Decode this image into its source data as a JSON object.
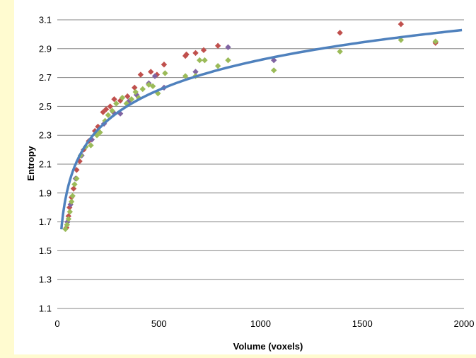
{
  "chart_data": {
    "type": "scatter",
    "title": "",
    "xlabel": "Volume (voxels)",
    "ylabel": "Entropy",
    "xlim": [
      0,
      2000
    ],
    "ylim": [
      1.1,
      3.1
    ],
    "x_ticks": [
      0,
      500,
      1000,
      1500,
      2000
    ],
    "y_ticks": [
      1.1,
      1.3,
      1.5,
      1.7,
      1.9,
      2.1,
      2.3,
      2.5,
      2.7,
      2.9,
      3.1
    ],
    "y_tick_labels": [
      "1.1",
      "1.3",
      "1.5",
      "1.7",
      "1.9",
      "2.1",
      "2.3",
      "2.5",
      "2.7",
      "2.9",
      "3.1"
    ],
    "grid": "horizontal",
    "legend": "none",
    "series": [
      {
        "color": "#c0504d",
        "marker": "diamond",
        "points": [
          [
            45,
            1.66
          ],
          [
            55,
            1.74
          ],
          [
            60,
            1.8
          ],
          [
            70,
            1.87
          ],
          [
            80,
            1.93
          ],
          [
            95,
            2.06
          ],
          [
            110,
            2.12
          ],
          [
            130,
            2.2
          ],
          [
            155,
            2.26
          ],
          [
            185,
            2.33
          ],
          [
            200,
            2.36
          ],
          [
            225,
            2.46
          ],
          [
            240,
            2.48
          ],
          [
            260,
            2.5
          ],
          [
            280,
            2.55
          ],
          [
            310,
            2.54
          ],
          [
            345,
            2.57
          ],
          [
            380,
            2.63
          ],
          [
            410,
            2.72
          ],
          [
            460,
            2.74
          ],
          [
            490,
            2.72
          ],
          [
            525,
            2.79
          ],
          [
            630,
            2.85
          ],
          [
            635,
            2.86
          ],
          [
            680,
            2.87
          ],
          [
            720,
            2.89
          ],
          [
            790,
            2.92
          ],
          [
            1390,
            3.01
          ],
          [
            1690,
            3.07
          ],
          [
            1860,
            2.94
          ]
        ]
      },
      {
        "color": "#8064a2",
        "marker": "diamond",
        "points": [
          [
            50,
            1.7
          ],
          [
            65,
            1.82
          ],
          [
            90,
            2.0
          ],
          [
            120,
            2.16
          ],
          [
            170,
            2.27
          ],
          [
            230,
            2.38
          ],
          [
            275,
            2.46
          ],
          [
            310,
            2.45
          ],
          [
            355,
            2.54
          ],
          [
            390,
            2.58
          ],
          [
            450,
            2.66
          ],
          [
            480,
            2.71
          ],
          [
            525,
            2.63
          ],
          [
            680,
            2.74
          ],
          [
            840,
            2.91
          ],
          [
            1065,
            2.82
          ]
        ]
      },
      {
        "color": "#9bbb59",
        "marker": "diamond",
        "points": [
          [
            40,
            1.65
          ],
          [
            48,
            1.68
          ],
          [
            55,
            1.72
          ],
          [
            62,
            1.77
          ],
          [
            70,
            1.84
          ],
          [
            75,
            1.88
          ],
          [
            85,
            1.96
          ],
          [
            95,
            2.0
          ],
          [
            115,
            2.16
          ],
          [
            140,
            2.22
          ],
          [
            165,
            2.23
          ],
          [
            195,
            2.3
          ],
          [
            210,
            2.32
          ],
          [
            235,
            2.4
          ],
          [
            250,
            2.44
          ],
          [
            270,
            2.47
          ],
          [
            290,
            2.52
          ],
          [
            320,
            2.56
          ],
          [
            340,
            2.52
          ],
          [
            365,
            2.55
          ],
          [
            385,
            2.6
          ],
          [
            400,
            2.56
          ],
          [
            420,
            2.62
          ],
          [
            450,
            2.65
          ],
          [
            470,
            2.64
          ],
          [
            495,
            2.59
          ],
          [
            530,
            2.73
          ],
          [
            630,
            2.71
          ],
          [
            680,
            2.71
          ],
          [
            700,
            2.82
          ],
          [
            725,
            2.82
          ],
          [
            790,
            2.78
          ],
          [
            840,
            2.82
          ],
          [
            1065,
            2.75
          ],
          [
            1390,
            2.88
          ],
          [
            1690,
            2.96
          ],
          [
            1860,
            2.95
          ]
        ]
      }
    ],
    "fit_curve": {
      "color": "#4f81bd",
      "equation": "y = 0.3 * ln(x) + 0.75",
      "x_range": [
        20,
        2000
      ]
    }
  }
}
